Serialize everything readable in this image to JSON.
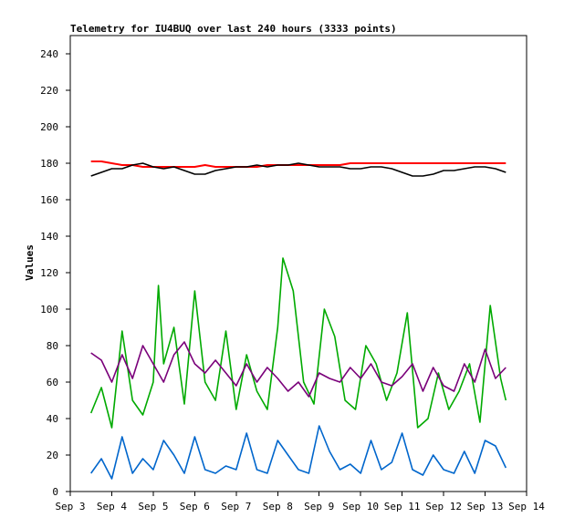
{
  "chart_data": {
    "type": "line",
    "title": "Telemetry for IU4BUQ over last 240 hours (3333 points)",
    "xlabel": "",
    "ylabel": "Values",
    "ylim": [
      0,
      250
    ],
    "yticks": [
      0,
      20,
      40,
      60,
      80,
      100,
      120,
      140,
      160,
      180,
      200,
      220,
      240
    ],
    "xlim": [
      "2024-09-03 00:00",
      "2024-09-14 00:00"
    ],
    "xticks": [
      {
        "date": "2024-09-03 00:00",
        "label": "Sep 3"
      },
      {
        "date": "2024-09-04 00:00",
        "label": "Sep 4"
      },
      {
        "date": "2024-09-05 00:00",
        "label": "Sep 5"
      },
      {
        "date": "2024-09-06 00:00",
        "label": "Sep 6"
      },
      {
        "date": "2024-09-07 00:00",
        "label": "Sep 7"
      },
      {
        "date": "2024-09-08 00:00",
        "label": "Sep 8"
      },
      {
        "date": "2024-09-09 00:00",
        "label": "Sep 9"
      },
      {
        "date": "2024-09-10 00:00",
        "label": "Sep 10"
      },
      {
        "date": "2024-09-11 00:00",
        "label": "Sep 11"
      },
      {
        "date": "2024-09-12 00:00",
        "label": "Sep 12"
      },
      {
        "date": "2024-09-13 00:00",
        "label": "Sep 13"
      },
      {
        "date": "2024-09-14 00:00",
        "label": "Sep 14"
      }
    ],
    "grid": false,
    "legend": "none",
    "series": [
      {
        "color": "#ff0000",
        "x": [
          "2024-09-03 12:00",
          "2024-09-03 18:00",
          "2024-09-04 00:00",
          "2024-09-04 06:00",
          "2024-09-04 12:00",
          "2024-09-04 18:00",
          "2024-09-05 00:00",
          "2024-09-05 06:00",
          "2024-09-05 12:00",
          "2024-09-05 18:00",
          "2024-09-06 00:00",
          "2024-09-06 06:00",
          "2024-09-06 12:00",
          "2024-09-06 18:00",
          "2024-09-07 00:00",
          "2024-09-07 06:00",
          "2024-09-07 12:00",
          "2024-09-07 18:00",
          "2024-09-08 00:00",
          "2024-09-08 06:00",
          "2024-09-08 12:00",
          "2024-09-08 18:00",
          "2024-09-09 00:00",
          "2024-09-09 06:00",
          "2024-09-09 12:00",
          "2024-09-09 18:00",
          "2024-09-10 00:00",
          "2024-09-10 06:00",
          "2024-09-10 12:00",
          "2024-09-10 18:00",
          "2024-09-11 00:00",
          "2024-09-11 06:00",
          "2024-09-11 12:00",
          "2024-09-11 18:00",
          "2024-09-12 00:00",
          "2024-09-12 06:00",
          "2024-09-12 12:00",
          "2024-09-12 18:00",
          "2024-09-13 00:00",
          "2024-09-13 06:00",
          "2024-09-13 12:00"
        ],
        "y": [
          181,
          181,
          180,
          179,
          179,
          178,
          178,
          178,
          178,
          178,
          178,
          179,
          178,
          178,
          178,
          178,
          178,
          179,
          179,
          179,
          179,
          179,
          179,
          179,
          179,
          180,
          180,
          180,
          180,
          180,
          180,
          180,
          180,
          180,
          180,
          180,
          180,
          180,
          180,
          180,
          180
        ]
      },
      {
        "color": "#000000",
        "x": [
          "2024-09-03 12:00",
          "2024-09-03 18:00",
          "2024-09-04 00:00",
          "2024-09-04 06:00",
          "2024-09-04 12:00",
          "2024-09-04 18:00",
          "2024-09-05 00:00",
          "2024-09-05 06:00",
          "2024-09-05 12:00",
          "2024-09-05 18:00",
          "2024-09-06 00:00",
          "2024-09-06 06:00",
          "2024-09-06 12:00",
          "2024-09-06 18:00",
          "2024-09-07 00:00",
          "2024-09-07 06:00",
          "2024-09-07 12:00",
          "2024-09-07 18:00",
          "2024-09-08 00:00",
          "2024-09-08 06:00",
          "2024-09-08 12:00",
          "2024-09-08 18:00",
          "2024-09-09 00:00",
          "2024-09-09 06:00",
          "2024-09-09 12:00",
          "2024-09-09 18:00",
          "2024-09-10 00:00",
          "2024-09-10 06:00",
          "2024-09-10 12:00",
          "2024-09-10 18:00",
          "2024-09-11 00:00",
          "2024-09-11 06:00",
          "2024-09-11 12:00",
          "2024-09-11 18:00",
          "2024-09-12 00:00",
          "2024-09-12 06:00",
          "2024-09-12 12:00",
          "2024-09-12 18:00",
          "2024-09-13 00:00",
          "2024-09-13 06:00",
          "2024-09-13 12:00"
        ],
        "y": [
          173,
          175,
          177,
          177,
          179,
          180,
          178,
          177,
          178,
          176,
          174,
          174,
          176,
          177,
          178,
          178,
          179,
          178,
          179,
          179,
          180,
          179,
          178,
          178,
          178,
          177,
          177,
          178,
          178,
          177,
          175,
          173,
          173,
          174,
          176,
          176,
          177,
          178,
          178,
          177,
          175
        ]
      },
      {
        "color": "#00aa00",
        "x": [
          "2024-09-03 12:00",
          "2024-09-03 18:00",
          "2024-09-04 00:00",
          "2024-09-04 06:00",
          "2024-09-04 12:00",
          "2024-09-04 18:00",
          "2024-09-05 00:00",
          "2024-09-05 03:00",
          "2024-09-05 06:00",
          "2024-09-05 12:00",
          "2024-09-05 18:00",
          "2024-09-06 00:00",
          "2024-09-06 06:00",
          "2024-09-06 12:00",
          "2024-09-06 18:00",
          "2024-09-07 00:00",
          "2024-09-07 06:00",
          "2024-09-07 12:00",
          "2024-09-07 18:00",
          "2024-09-08 00:00",
          "2024-09-08 03:00",
          "2024-09-08 09:00",
          "2024-09-08 15:00",
          "2024-09-08 21:00",
          "2024-09-09 03:00",
          "2024-09-09 09:00",
          "2024-09-09 15:00",
          "2024-09-09 21:00",
          "2024-09-10 03:00",
          "2024-09-10 09:00",
          "2024-09-10 15:00",
          "2024-09-10 21:00",
          "2024-09-11 03:00",
          "2024-09-11 09:00",
          "2024-09-11 15:00",
          "2024-09-11 21:00",
          "2024-09-12 03:00",
          "2024-09-12 09:00",
          "2024-09-12 15:00",
          "2024-09-12 21:00",
          "2024-09-13 03:00",
          "2024-09-13 09:00",
          "2024-09-13 12:00"
        ],
        "y": [
          43,
          57,
          35,
          88,
          50,
          42,
          60,
          113,
          70,
          90,
          48,
          110,
          60,
          50,
          88,
          45,
          75,
          55,
          45,
          90,
          128,
          110,
          60,
          48,
          100,
          85,
          50,
          45,
          80,
          70,
          50,
          65,
          98,
          35,
          40,
          65,
          45,
          55,
          70,
          38,
          102,
          62,
          50
        ]
      },
      {
        "color": "#7a007a",
        "x": [
          "2024-09-03 12:00",
          "2024-09-03 18:00",
          "2024-09-04 00:00",
          "2024-09-04 06:00",
          "2024-09-04 12:00",
          "2024-09-04 18:00",
          "2024-09-05 00:00",
          "2024-09-05 06:00",
          "2024-09-05 12:00",
          "2024-09-05 18:00",
          "2024-09-06 00:00",
          "2024-09-06 06:00",
          "2024-09-06 12:00",
          "2024-09-06 18:00",
          "2024-09-07 00:00",
          "2024-09-07 06:00",
          "2024-09-07 12:00",
          "2024-09-07 18:00",
          "2024-09-08 00:00",
          "2024-09-08 06:00",
          "2024-09-08 12:00",
          "2024-09-08 18:00",
          "2024-09-09 00:00",
          "2024-09-09 06:00",
          "2024-09-09 12:00",
          "2024-09-09 18:00",
          "2024-09-10 00:00",
          "2024-09-10 06:00",
          "2024-09-10 12:00",
          "2024-09-10 18:00",
          "2024-09-11 00:00",
          "2024-09-11 06:00",
          "2024-09-11 12:00",
          "2024-09-11 18:00",
          "2024-09-12 00:00",
          "2024-09-12 06:00",
          "2024-09-12 12:00",
          "2024-09-12 18:00",
          "2024-09-13 00:00",
          "2024-09-13 06:00",
          "2024-09-13 12:00"
        ],
        "y": [
          76,
          72,
          60,
          75,
          62,
          80,
          70,
          60,
          75,
          82,
          70,
          65,
          72,
          65,
          58,
          70,
          60,
          68,
          62,
          55,
          60,
          52,
          65,
          62,
          60,
          68,
          62,
          70,
          60,
          58,
          63,
          70,
          55,
          68,
          58,
          55,
          70,
          60,
          78,
          62,
          68
        ]
      },
      {
        "color": "#0066cc",
        "x": [
          "2024-09-03 12:00",
          "2024-09-03 18:00",
          "2024-09-04 00:00",
          "2024-09-04 06:00",
          "2024-09-04 12:00",
          "2024-09-04 18:00",
          "2024-09-05 00:00",
          "2024-09-05 06:00",
          "2024-09-05 12:00",
          "2024-09-05 18:00",
          "2024-09-06 00:00",
          "2024-09-06 06:00",
          "2024-09-06 12:00",
          "2024-09-06 18:00",
          "2024-09-07 00:00",
          "2024-09-07 06:00",
          "2024-09-07 12:00",
          "2024-09-07 18:00",
          "2024-09-08 00:00",
          "2024-09-08 06:00",
          "2024-09-08 12:00",
          "2024-09-08 18:00",
          "2024-09-09 00:00",
          "2024-09-09 06:00",
          "2024-09-09 12:00",
          "2024-09-09 18:00",
          "2024-09-10 00:00",
          "2024-09-10 06:00",
          "2024-09-10 12:00",
          "2024-09-10 18:00",
          "2024-09-11 00:00",
          "2024-09-11 06:00",
          "2024-09-11 12:00",
          "2024-09-11 18:00",
          "2024-09-12 00:00",
          "2024-09-12 06:00",
          "2024-09-12 12:00",
          "2024-09-12 18:00",
          "2024-09-13 00:00",
          "2024-09-13 06:00",
          "2024-09-13 12:00"
        ],
        "y": [
          10,
          18,
          7,
          30,
          10,
          18,
          12,
          28,
          20,
          10,
          30,
          12,
          10,
          14,
          12,
          32,
          12,
          10,
          28,
          20,
          12,
          10,
          36,
          22,
          12,
          15,
          10,
          28,
          12,
          16,
          32,
          12,
          9,
          20,
          12,
          10,
          22,
          10,
          28,
          25,
          13
        ]
      }
    ]
  }
}
